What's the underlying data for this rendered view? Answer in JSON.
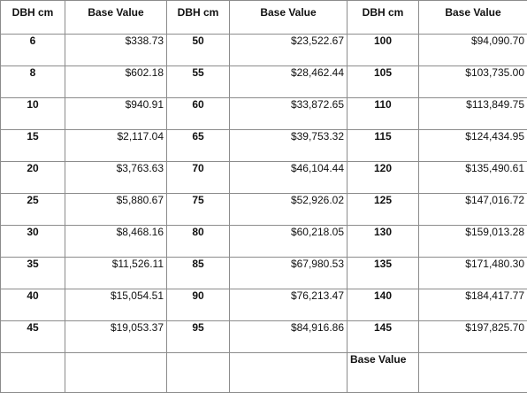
{
  "table": {
    "headers": [
      "DBH cm",
      "Base Value",
      "DBH cm",
      "Base Value",
      "DBH cm",
      "Base Value"
    ],
    "rows": [
      [
        "6",
        "$338.73",
        "50",
        "$23,522.67",
        "100",
        "$94,090.70"
      ],
      [
        "8",
        "$602.18",
        "55",
        "$28,462.44",
        "105",
        "$103,735.00"
      ],
      [
        "10",
        "$940.91",
        "60",
        "$33,872.65",
        "110",
        "$113,849.75"
      ],
      [
        "15",
        "$2,117.04",
        "65",
        "$39,753.32",
        "115",
        "$124,434.95"
      ],
      [
        "20",
        "$3,763.63",
        "70",
        "$46,104.44",
        "120",
        "$135,490.61"
      ],
      [
        "25",
        "$5,880.67",
        "75",
        "$52,926.02",
        "125",
        "$147,016.72"
      ],
      [
        "30",
        "$8,468.16",
        "80",
        "$60,218.05",
        "130",
        "$159,013.28"
      ],
      [
        "35",
        "$11,526.11",
        "85",
        "$67,980.53",
        "135",
        "$171,480.30"
      ],
      [
        "40",
        "$15,054.51",
        "90",
        "$76,213.47",
        "140",
        "$184,417.77"
      ],
      [
        "45",
        "$19,053.37",
        "95",
        "$84,916.86",
        "145",
        "$197,825.70"
      ]
    ],
    "last_row": [
      "",
      "",
      "",
      "",
      "Base Value",
      ""
    ]
  }
}
